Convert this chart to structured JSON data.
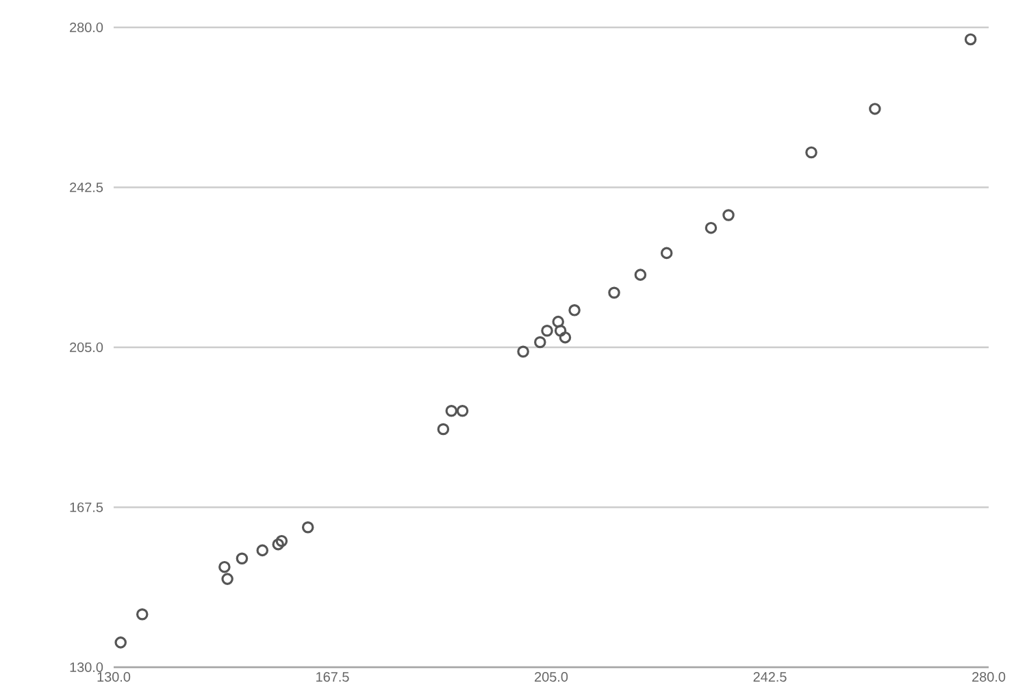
{
  "chart_data": {
    "type": "scatter",
    "marker": "circle",
    "grid": "y",
    "x": [
      131.2,
      134.9,
      149.5,
      149.0,
      152.0,
      155.5,
      158.2,
      158.8,
      163.3,
      186.5,
      187.9,
      189.8,
      200.2,
      203.1,
      204.3,
      206.6,
      207.4,
      206.2,
      209.0,
      215.8,
      220.3,
      224.8,
      232.4,
      235.4,
      249.6,
      260.5,
      276.9
    ],
    "series": [
      {
        "color": "#555555",
        "values": [
          135.8,
          142.4,
          150.7,
          153.5,
          155.5,
          157.4,
          158.8,
          159.6,
          162.8,
          185.8,
          190.1,
          190.1,
          204.0,
          206.2,
          208.9,
          208.9,
          207.3,
          211.0,
          213.7,
          217.8,
          222.0,
          227.1,
          233.0,
          236.0,
          250.7,
          260.9,
          277.2
        ]
      }
    ],
    "xlim": [
      130.0,
      280.0
    ],
    "ylim": [
      130.0,
      280.0
    ],
    "xticks": [
      {
        "value": 130.0,
        "label": "130.0"
      },
      {
        "value": 167.5,
        "label": "167.5"
      },
      {
        "value": 205.0,
        "label": "205.0"
      },
      {
        "value": 242.5,
        "label": "242.5"
      },
      {
        "value": 280.0,
        "label": "280.0"
      }
    ],
    "yticks": [
      {
        "value": 130.0,
        "label": "130.0"
      },
      {
        "value": 167.5,
        "label": "167.5"
      },
      {
        "value": 205.0,
        "label": "205.0"
      },
      {
        "value": 242.5,
        "label": "242.5"
      },
      {
        "value": 280.0,
        "label": "280.0"
      }
    ]
  }
}
